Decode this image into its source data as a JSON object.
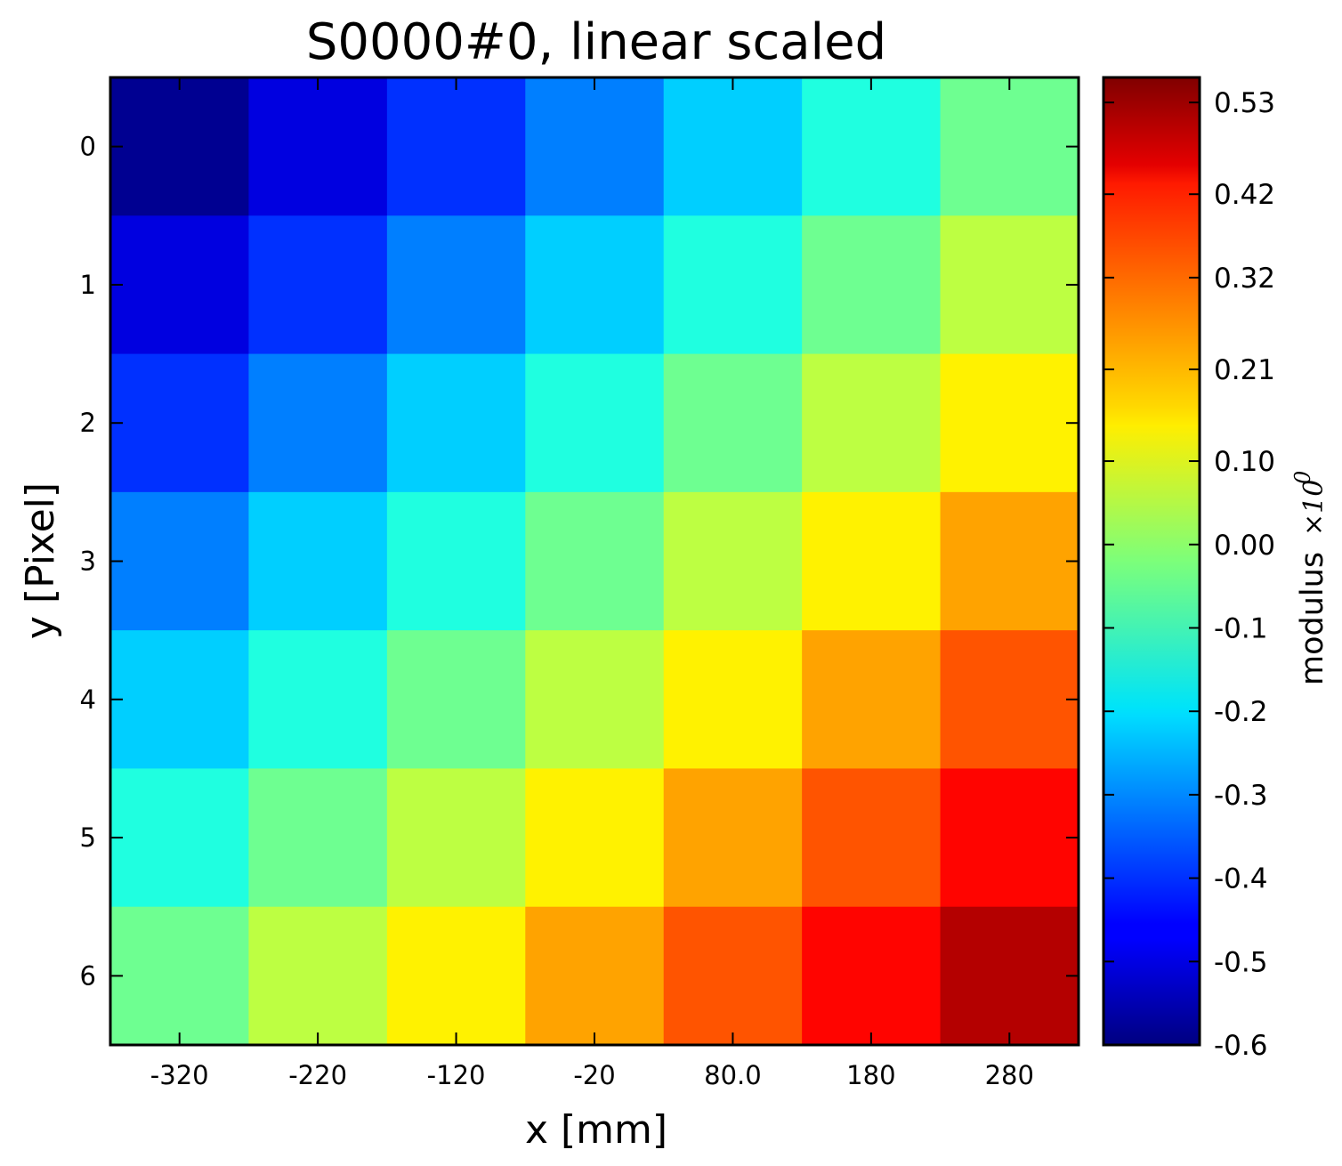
{
  "chart_data": {
    "type": "heatmap",
    "title": "S0000#0, linear scaled",
    "xlabel": "x [mm]",
    "ylabel": "y [Pixel]",
    "x_tick_labels": [
      "-320",
      "-220",
      "-120",
      "-20",
      "80.0",
      "180",
      "280"
    ],
    "y_tick_labels": [
      "0",
      "1",
      "2",
      "3",
      "4",
      "5",
      "6"
    ],
    "colormap": "jet",
    "colorbar": {
      "label": "modulus",
      "multiplier": "×10",
      "exponent": "0",
      "min": -0.6,
      "max": 0.56,
      "tick_labels": [
        "0.53",
        "0.42",
        "0.32",
        "0.21",
        "0.10",
        "0.00",
        "-0.1",
        "-0.2",
        "-0.3",
        "-0.4",
        "-0.5",
        "-0.6"
      ],
      "tick_values": [
        0.53,
        0.42,
        0.32,
        0.21,
        0.1,
        0.0,
        -0.1,
        -0.2,
        -0.3,
        -0.4,
        -0.5,
        -0.6
      ]
    },
    "values": [
      [
        -0.58,
        -0.49,
        -0.4,
        -0.31,
        -0.22,
        -0.13,
        -0.04
      ],
      [
        -0.49,
        -0.4,
        -0.31,
        -0.22,
        -0.13,
        -0.04,
        0.05
      ],
      [
        -0.4,
        -0.31,
        -0.22,
        -0.13,
        -0.04,
        0.05,
        0.14
      ],
      [
        -0.31,
        -0.22,
        -0.13,
        -0.04,
        0.05,
        0.14,
        0.23
      ],
      [
        -0.22,
        -0.13,
        -0.04,
        0.05,
        0.14,
        0.23,
        0.32
      ],
      [
        -0.13,
        -0.04,
        0.05,
        0.14,
        0.23,
        0.32,
        0.41
      ],
      [
        -0.04,
        0.05,
        0.14,
        0.23,
        0.32,
        0.41,
        0.5
      ]
    ]
  }
}
